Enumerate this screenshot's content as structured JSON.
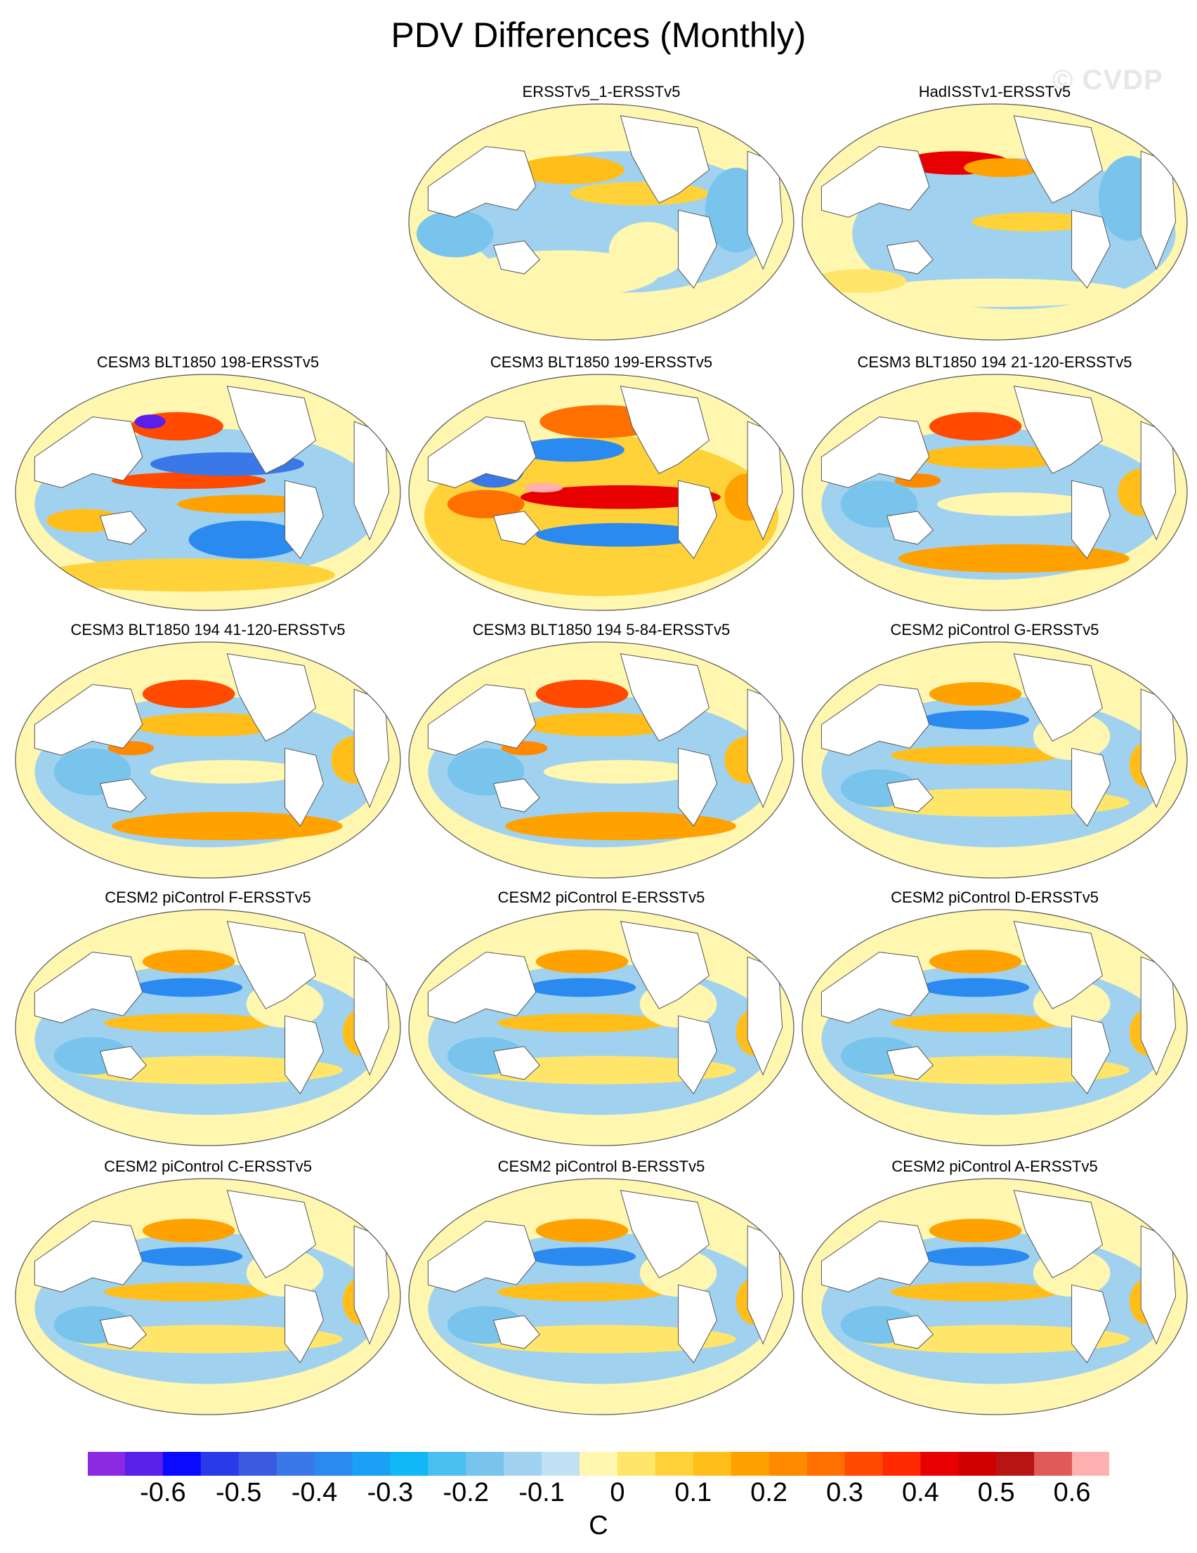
{
  "title": "PDV Differences (Monthly)",
  "watermark": "© CVDP",
  "panels": [
    {
      "label": "ERSSTv5_1-ERSSTv5",
      "pattern": "obs1"
    },
    {
      "label": "HadISSTv1-ERSSTv5",
      "pattern": "obs2"
    },
    {
      "label": "CESM3 BLT1850 198-ERSSTv5",
      "pattern": "strong"
    },
    {
      "label": "CESM3 BLT1850 199-ERSSTv5",
      "pattern": "strongest"
    },
    {
      "label": "CESM3 BLT1850 194 21-120-ERSSTv5",
      "pattern": "medium"
    },
    {
      "label": "CESM3 BLT1850 194 41-120-ERSSTv5",
      "pattern": "medium"
    },
    {
      "label": "CESM3 BLT1850 194 5-84-ERSSTv5",
      "pattern": "medium"
    },
    {
      "label": "CESM2 piControl G-ERSSTv5",
      "pattern": "mild"
    },
    {
      "label": "CESM2 piControl F-ERSSTv5",
      "pattern": "mild"
    },
    {
      "label": "CESM2 piControl E-ERSSTv5",
      "pattern": "mild"
    },
    {
      "label": "CESM2 piControl D-ERSSTv5",
      "pattern": "mild"
    },
    {
      "label": "CESM2 piControl C-ERSSTv5",
      "pattern": "mild"
    },
    {
      "label": "CESM2 piControl B-ERSSTv5",
      "pattern": "mild"
    },
    {
      "label": "CESM2 piControl A-ERSSTv5",
      "pattern": "mild"
    }
  ],
  "colorbar": {
    "colors": [
      "#8a2be2",
      "#5a1fe8",
      "#0a0aff",
      "#2a3ae8",
      "#3a5ae0",
      "#3a78e8",
      "#2a8af0",
      "#1aa0f5",
      "#10b8f8",
      "#4ac0f0",
      "#78c4ec",
      "#a0d2f0",
      "#c0e2f4",
      "#fff6b0",
      "#ffe66a",
      "#ffd23a",
      "#ffbe1a",
      "#ffa200",
      "#ff8a00",
      "#ff7000",
      "#ff4a00",
      "#ff2a00",
      "#e80000",
      "#d00000",
      "#b81414",
      "#e05a5a",
      "#ffb0b0"
    ],
    "tick_labels": [
      "-0.6",
      "-0.5",
      "-0.4",
      "-0.3",
      "-0.2",
      "-0.1",
      "0",
      "0.1",
      "0.2",
      "0.3",
      "0.4",
      "0.5",
      "0.6"
    ],
    "units": "C"
  }
}
